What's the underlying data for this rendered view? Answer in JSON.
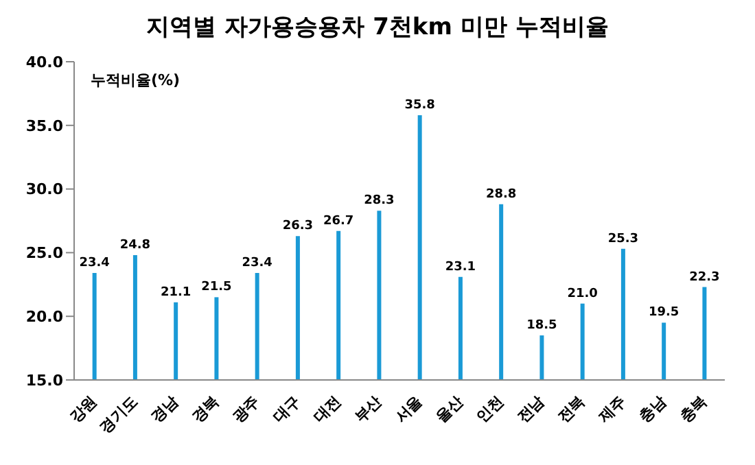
{
  "chart_data": {
    "type": "bar",
    "title": "지역별 자가용승용차 7천km 미만 누적비율",
    "ylabel": "누적비율(%)",
    "categories": [
      "강원",
      "경기도",
      "경남",
      "경북",
      "광주",
      "대구",
      "대전",
      "부산",
      "서울",
      "울산",
      "인천",
      "전남",
      "전북",
      "제주",
      "충남",
      "충북"
    ],
    "values": [
      23.4,
      24.8,
      21.1,
      21.5,
      23.4,
      26.3,
      26.7,
      28.3,
      35.8,
      23.1,
      28.8,
      18.5,
      21.0,
      25.3,
      19.5,
      22.3
    ],
    "value_labels": [
      "23.4",
      "24.8",
      "21.1",
      "21.5",
      "23.4",
      "26.3",
      "26.7",
      "28.3",
      "35.8",
      "23.1",
      "28.8",
      "18.5",
      "21.0",
      "25.3",
      "19.5",
      "22.3"
    ],
    "color": "#1a9ad6",
    "ylim": [
      15,
      40
    ],
    "yticks": [
      {
        "value": 15,
        "label": "15.0"
      },
      {
        "value": 20,
        "label": "20.0"
      },
      {
        "value": 25,
        "label": "25.0"
      },
      {
        "value": 30,
        "label": "30.0"
      },
      {
        "value": 35,
        "label": "35.0"
      },
      {
        "value": 40,
        "label": "40.0"
      }
    ],
    "grid": false
  }
}
